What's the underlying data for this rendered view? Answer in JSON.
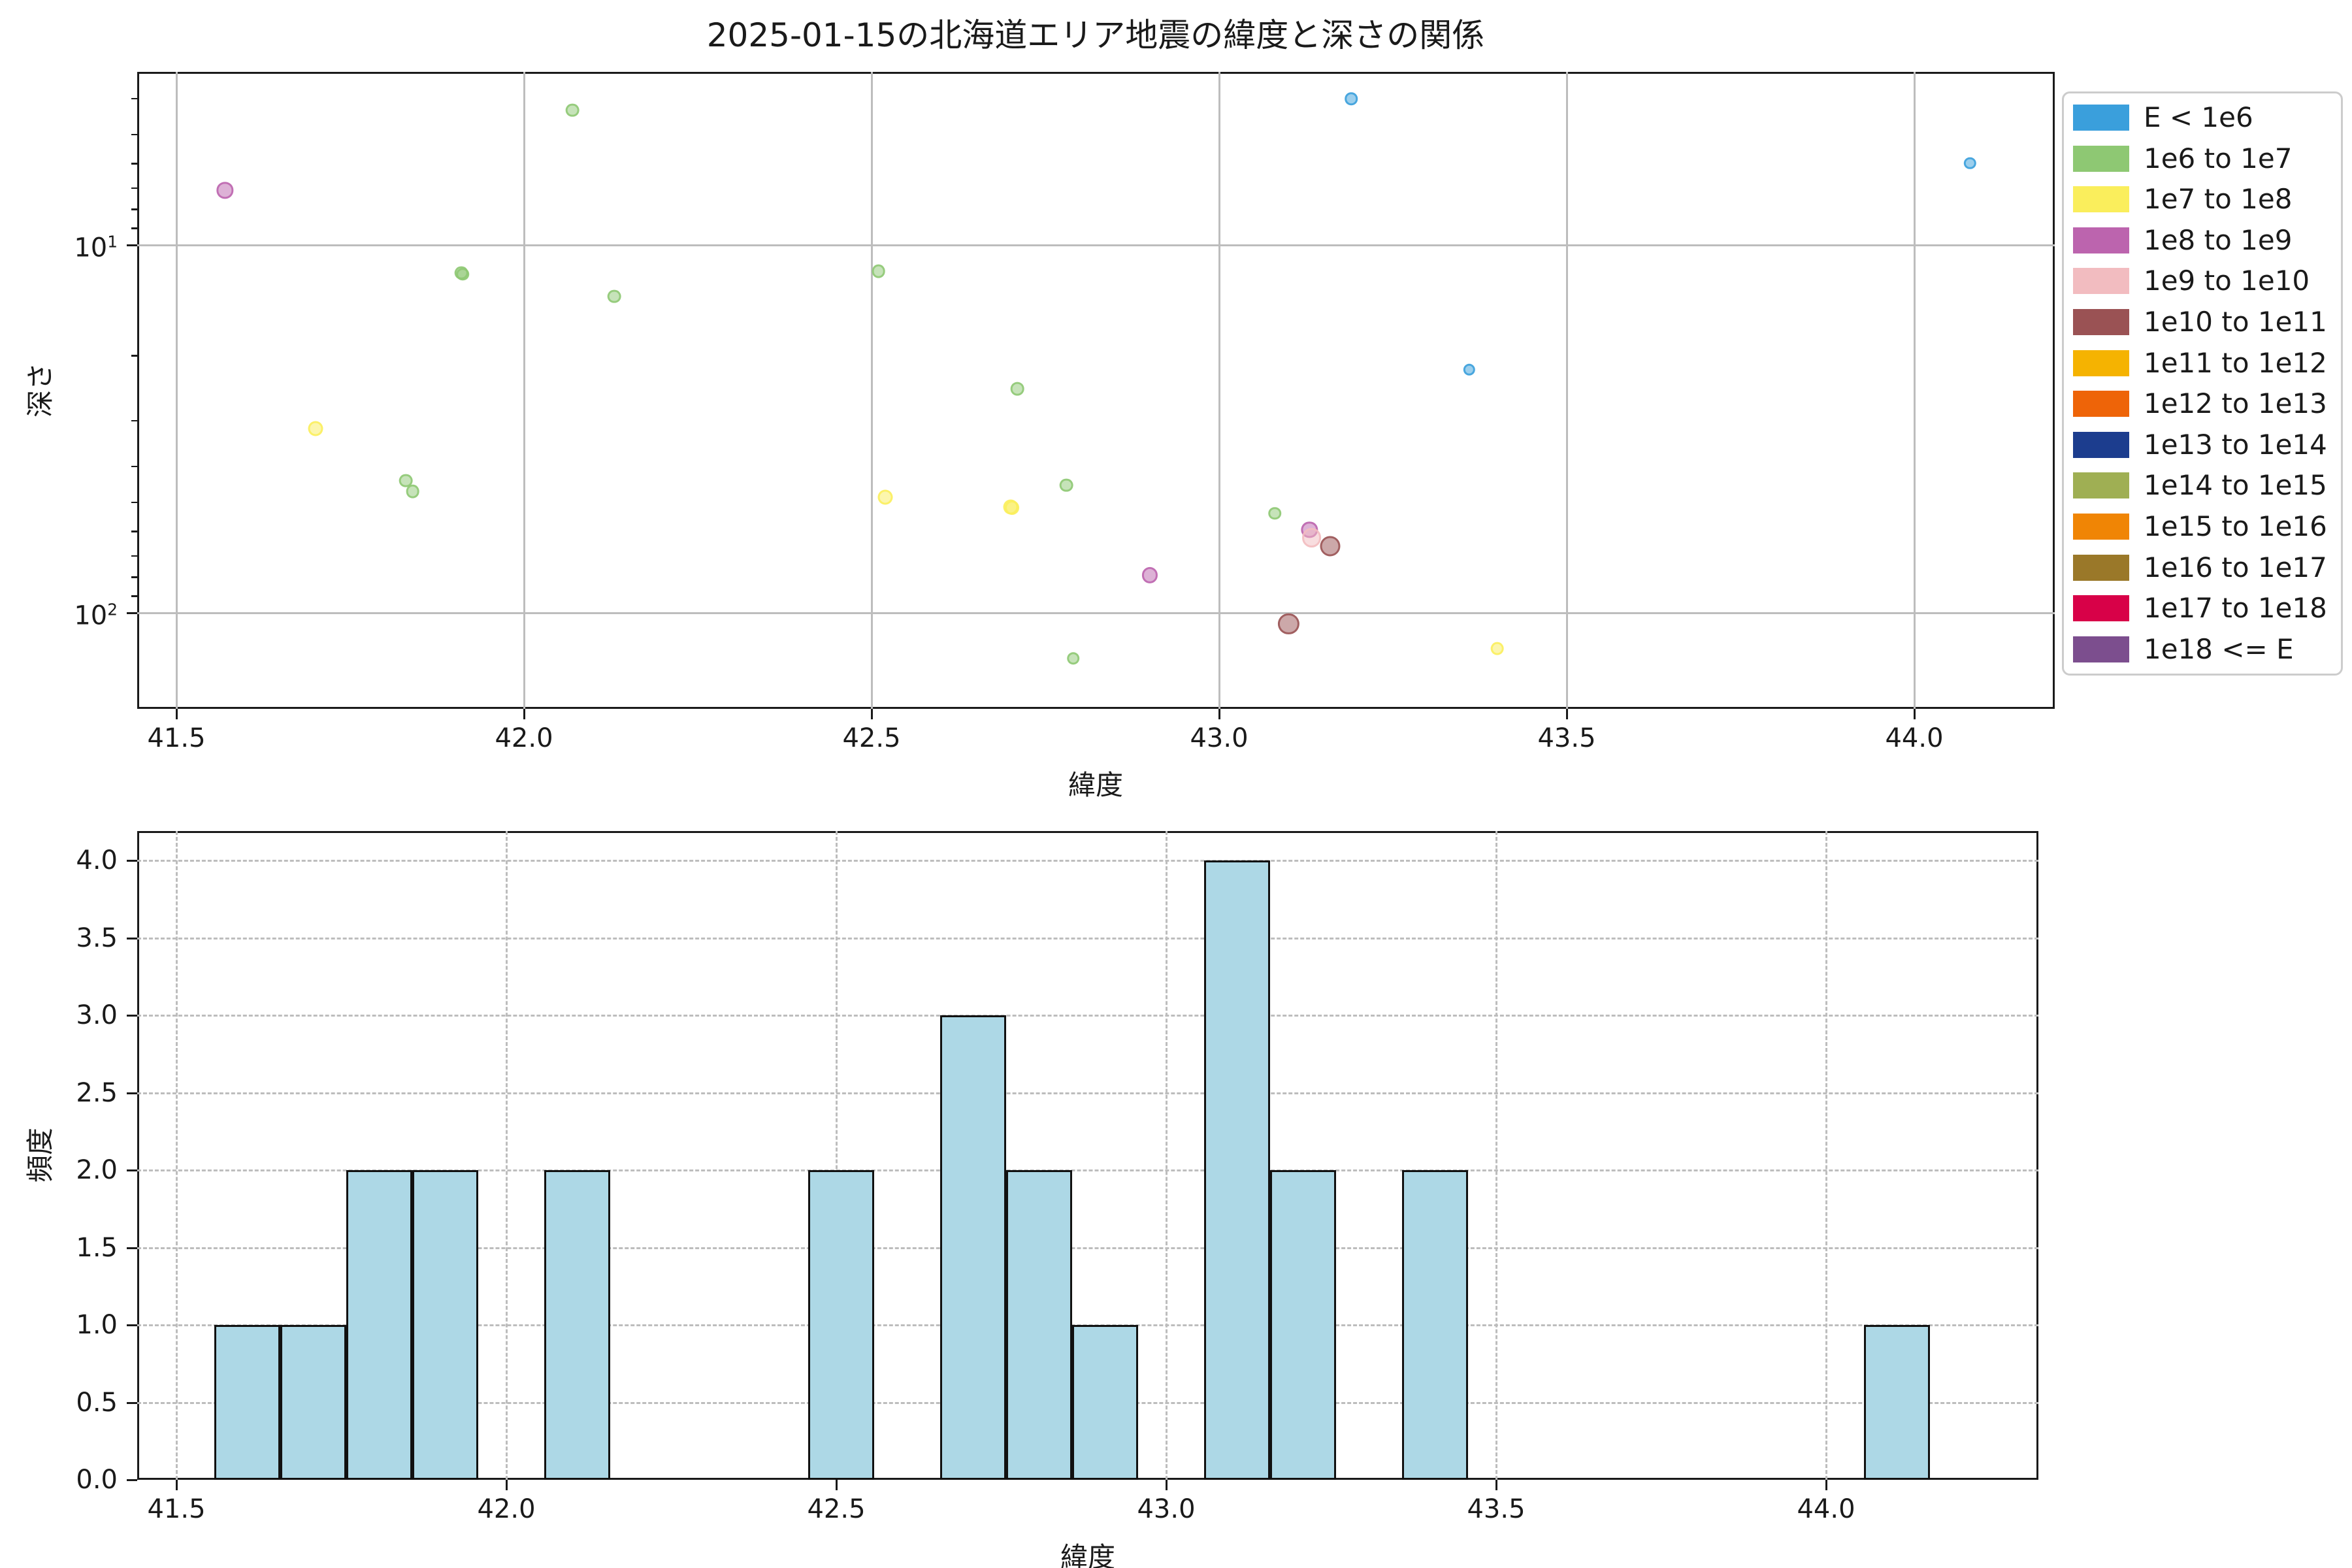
{
  "figure": {
    "title": "2025-01-15の北海道エリア地震の緯度と深さの関係",
    "background": "#ffffff"
  },
  "chart_data": [
    {
      "type": "scatter",
      "title": "2025-01-15の北海道エリア地震の緯度と深さの関係",
      "xlabel": "緯度",
      "ylabel": "深さ",
      "x_ticks": [
        41.5,
        42.0,
        42.5,
        43.0,
        43.5,
        44.0
      ],
      "xlim": [
        41.444,
        44.207
      ],
      "y_scale": "log (inverted, depth increases downward)",
      "ylim": [
        3.4,
        182
      ],
      "y_ticks": [
        {
          "base": "10",
          "exp": "1",
          "value": 10
        },
        {
          "base": "10",
          "exp": "2",
          "value": 100
        }
      ],
      "y_minor_ticks": [
        4,
        5,
        6,
        7,
        8,
        9,
        20,
        30,
        40,
        50,
        60,
        70,
        80,
        90
      ],
      "grid": "solid major",
      "legend_position": "upper right, outside axes",
      "legend": [
        {
          "label": "E < 1e6",
          "color": "#3A9FDC"
        },
        {
          "label": "1e6 to 1e7",
          "color": "#8EC873"
        },
        {
          "label": "1e7 to 1e8",
          "color": "#FAEE5C"
        },
        {
          "label": "1e8 to 1e9",
          "color": "#BC64AE"
        },
        {
          "label": "1e9 to 1e10",
          "color": "#F2BCC0"
        },
        {
          "label": "1e10 to 1e11",
          "color": "#9A5254"
        },
        {
          "label": "1e11 to 1e12",
          "color": "#F5B301"
        },
        {
          "label": "1e12 to 1e13",
          "color": "#EE6408"
        },
        {
          "label": "1e13 to 1e14",
          "color": "#1C3D8E"
        },
        {
          "label": "1e14 to 1e15",
          "color": "#9FAF53"
        },
        {
          "label": "1e15 to 1e16",
          "color": "#F08505"
        },
        {
          "label": "1e16 to 1e17",
          "color": "#9A7829"
        },
        {
          "label": "1e17 to 1e18",
          "color": "#D80148"
        },
        {
          "label": "1e18 <= E",
          "color": "#7C4E8E"
        }
      ],
      "points": [
        {
          "lat": 43.19,
          "depth": 4.0,
          "bin": "E < 1e6",
          "color": "#3A9FDC",
          "d": 17
        },
        {
          "lat": 44.08,
          "depth": 6.0,
          "bin": "E < 1e6",
          "color": "#3A9FDC",
          "d": 16
        },
        {
          "lat": 41.57,
          "depth": 7.1,
          "bin": "1e8 to 1e9",
          "color": "#BC64AE",
          "d": 22
        },
        {
          "lat": 42.07,
          "depth": 4.3,
          "bin": "1e6 to 1e7",
          "color": "#8EC873",
          "d": 18
        },
        {
          "lat": 41.91,
          "depth": 11.9,
          "bin": "1e6 to 1e7",
          "color": "#8EC873",
          "d": 18
        },
        {
          "lat": 41.912,
          "depth": 12.0,
          "bin": "1e6 to 1e7",
          "color": "#8EC873",
          "d": 17
        },
        {
          "lat": 42.13,
          "depth": 13.8,
          "bin": "1e6 to 1e7",
          "color": "#8EC873",
          "d": 18
        },
        {
          "lat": 42.51,
          "depth": 11.8,
          "bin": "1e6 to 1e7",
          "color": "#8EC873",
          "d": 18
        },
        {
          "lat": 42.71,
          "depth": 24.6,
          "bin": "1e6 to 1e7",
          "color": "#8EC873",
          "d": 18
        },
        {
          "lat": 43.36,
          "depth": 21.8,
          "bin": "E < 1e6",
          "color": "#3A9FDC",
          "d": 16
        },
        {
          "lat": 41.7,
          "depth": 31.6,
          "bin": "1e7 to 1e8",
          "color": "#FAEE5C",
          "d": 20
        },
        {
          "lat": 41.83,
          "depth": 43.7,
          "bin": "1e6 to 1e7",
          "color": "#8EC873",
          "d": 18
        },
        {
          "lat": 41.84,
          "depth": 46.7,
          "bin": "1e6 to 1e7",
          "color": "#8EC873",
          "d": 18
        },
        {
          "lat": 42.78,
          "depth": 45.0,
          "bin": "1e6 to 1e7",
          "color": "#8EC873",
          "d": 18
        },
        {
          "lat": 42.52,
          "depth": 48.4,
          "bin": "1e7 to 1e8",
          "color": "#FAEE5C",
          "d": 20
        },
        {
          "lat": 42.7,
          "depth": 51.5,
          "bin": "1e7 to 1e8",
          "color": "#FAEE5C",
          "d": 20
        },
        {
          "lat": 42.702,
          "depth": 51.8,
          "bin": "1e7 to 1e8",
          "color": "#FAEE5C",
          "d": 19
        },
        {
          "lat": 43.08,
          "depth": 53.6,
          "bin": "1e6 to 1e7",
          "color": "#8EC873",
          "d": 17
        },
        {
          "lat": 43.13,
          "depth": 59.5,
          "bin": "1e8 to 1e9",
          "color": "#BC64AE",
          "d": 22
        },
        {
          "lat": 43.133,
          "depth": 62.5,
          "bin": "1e9 to 1e10",
          "color": "#F2BCC0",
          "d": 26
        },
        {
          "lat": 43.16,
          "depth": 66.0,
          "bin": "1e10 to 1e11",
          "color": "#9A5254",
          "d": 27
        },
        {
          "lat": 42.9,
          "depth": 79.0,
          "bin": "1e8 to 1e9",
          "color": "#BC64AE",
          "d": 21
        },
        {
          "lat": 43.1,
          "depth": 107,
          "bin": "1e10 to 1e11",
          "color": "#9A5254",
          "d": 28
        },
        {
          "lat": 43.4,
          "depth": 125,
          "bin": "1e7 to 1e8",
          "color": "#FAEE5C",
          "d": 18
        },
        {
          "lat": 42.79,
          "depth": 133,
          "bin": "1e6 to 1e7",
          "color": "#8EC873",
          "d": 17
        }
      ]
    },
    {
      "type": "bar",
      "subtype": "histogram",
      "xlabel": "緯度",
      "ylabel": "頻度",
      "x_ticks": [
        41.5,
        42.0,
        42.5,
        43.0,
        43.5,
        44.0
      ],
      "y_ticks": [
        0.0,
        0.5,
        1.0,
        1.5,
        2.0,
        2.5,
        3.0,
        3.5,
        4.0
      ],
      "y_gridlines": [
        0.5,
        1.0,
        1.5,
        2.0,
        2.5,
        3.0,
        3.5,
        4.0
      ],
      "xlim": [
        41.444,
        44.32
      ],
      "ylim": [
        0,
        4.2
      ],
      "grid": "dashed",
      "bar_fill": "#ADD8E6",
      "bar_edge": "#111111",
      "bars": [
        {
          "from": 41.557,
          "to": 41.657,
          "count": 1
        },
        {
          "from": 41.657,
          "to": 41.757,
          "count": 1
        },
        {
          "from": 41.757,
          "to": 41.857,
          "count": 2
        },
        {
          "from": 41.857,
          "to": 41.957,
          "count": 2
        },
        {
          "from": 42.057,
          "to": 42.157,
          "count": 2
        },
        {
          "from": 42.457,
          "to": 42.557,
          "count": 2
        },
        {
          "from": 42.657,
          "to": 42.757,
          "count": 3
        },
        {
          "from": 42.757,
          "to": 42.857,
          "count": 2
        },
        {
          "from": 42.857,
          "to": 42.957,
          "count": 1
        },
        {
          "from": 43.057,
          "to": 43.157,
          "count": 4
        },
        {
          "from": 43.157,
          "to": 43.257,
          "count": 2
        },
        {
          "from": 43.357,
          "to": 43.457,
          "count": 2
        },
        {
          "from": 44.057,
          "to": 44.157,
          "count": 1
        }
      ]
    }
  ]
}
